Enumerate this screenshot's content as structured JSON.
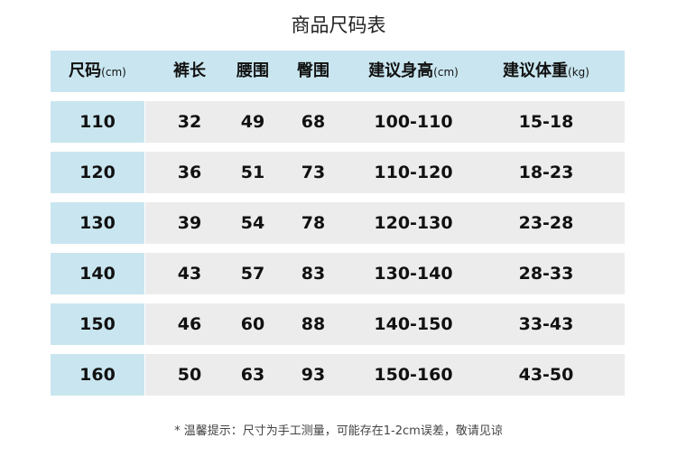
{
  "title": "商品尺码表",
  "colors": {
    "header_bg": "#c9e6f0",
    "size_cell_bg": "#c9e6f0",
    "row_bg": "#ececec"
  },
  "headers": [
    {
      "label": "尺码",
      "unit": "(cm)"
    },
    {
      "label": "裤长",
      "unit": ""
    },
    {
      "label": "腰围",
      "unit": ""
    },
    {
      "label": "臀围",
      "unit": ""
    },
    {
      "label": "建议身高",
      "unit": "(cm)"
    },
    {
      "label": "建议体重",
      "unit": "(kg)"
    }
  ],
  "rows": [
    [
      "110",
      "32",
      "49",
      "68",
      "100-110",
      "15-18"
    ],
    [
      "120",
      "36",
      "51",
      "73",
      "110-120",
      "18-23"
    ],
    [
      "130",
      "39",
      "54",
      "78",
      "120-130",
      "23-28"
    ],
    [
      "140",
      "43",
      "57",
      "83",
      "130-140",
      "28-33"
    ],
    [
      "150",
      "46",
      "60",
      "88",
      "140-150",
      "33-43"
    ],
    [
      "160",
      "50",
      "63",
      "93",
      "150-160",
      "43-50"
    ]
  ],
  "note": "* 温馨提示：尺寸为手工测量，可能存在1-2cm误差，敬请见谅"
}
